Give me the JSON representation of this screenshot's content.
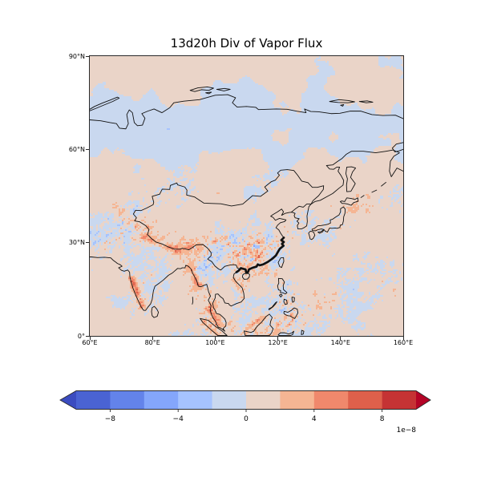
{
  "figure": {
    "title": "13d20h Div of Vapor Flux",
    "background_color": "#ffffff"
  },
  "map": {
    "extent": {
      "lon_min": 60,
      "lon_max": 160,
      "lat_min": 0,
      "lat_max": 90
    },
    "y_ticks": [
      {
        "label": "90°N",
        "lat": 90
      },
      {
        "label": "60°N",
        "lat": 60
      },
      {
        "label": "30°N",
        "lat": 30
      },
      {
        "label": "0°",
        "lat": 0
      }
    ],
    "x_ticks": [
      {
        "label": "60°E",
        "lon": 60
      },
      {
        "label": "80°E",
        "lon": 80
      },
      {
        "label": "100°E",
        "lon": 100
      },
      {
        "label": "120°E",
        "lon": 120
      },
      {
        "label": "140°E",
        "lon": 140
      },
      {
        "label": "160°E",
        "lon": 160
      }
    ],
    "coastline_color": "#111111",
    "highlight_outline": "bold black outline along southeast China coast"
  },
  "colorbar": {
    "orientation": "horizontal",
    "extend": "both",
    "levels": [
      -10,
      -8,
      -6,
      -4,
      -2,
      0,
      2,
      4,
      6,
      8,
      10
    ],
    "colors": [
      "#4a63d3",
      "#6383ea",
      "#84a6fb",
      "#a6c3fe",
      "#c9d8ef",
      "#ead4c8",
      "#f5b593",
      "#f0886c",
      "#de604b",
      "#c53334"
    ],
    "under_color": "#3b4cc0",
    "over_color": "#b40426",
    "ticks": [
      {
        "label": "−8",
        "value": -8
      },
      {
        "label": "−4",
        "value": -4
      },
      {
        "label": "0",
        "value": 0
      },
      {
        "label": "4",
        "value": 4
      },
      {
        "label": "8",
        "value": 8
      }
    ],
    "offset_label": "1e−8"
  },
  "chart_data": {
    "type": "heatmap",
    "title": "13d20h Div of Vapor Flux",
    "projection": "equirectangular (PlateCarree)",
    "x_axis": {
      "label": "",
      "tick_labels": [
        "60°E",
        "80°E",
        "100°E",
        "120°E",
        "140°E",
        "160°E"
      ],
      "range_deg_east": [
        60,
        160
      ]
    },
    "y_axis": {
      "label": "",
      "tick_labels": [
        "0°",
        "30°N",
        "60°N",
        "90°N"
      ],
      "range_deg_north": [
        0,
        90
      ]
    },
    "colorbar": {
      "tick_values": [
        -8,
        -4,
        0,
        4,
        8
      ],
      "scale_factor": "1e−8",
      "levels": [
        -10,
        -8,
        -6,
        -4,
        -2,
        0,
        2,
        4,
        6,
        8,
        10
      ],
      "colormap": "coolwarm (discrete, 10 bins, extended both ends)"
    },
    "field_description": "Divergence of vapor flux over Asia (60–160°E, 0–90°N). Field is near zero over most of the domain (pale pink / pale blue patches), with intense mixed positive (red) and negative (blue) small-scale anomalies over South China, the Tibetan Plateau margin and Himalayas, India's west coast (strong dark-red band), the Myanmar and Malay coasts, the Maritime Continent and the Philippines, plus faint reddish streaks over the western Pacific. Coastlines and the China national border are drawn in thin black; the southeast China coastline is drawn with a thick bold black line."
  }
}
